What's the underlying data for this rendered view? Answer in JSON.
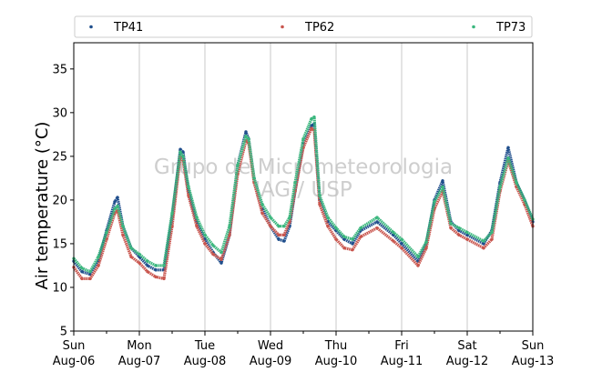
{
  "chart_data": {
    "type": "scatter",
    "title": "",
    "ylabel": "Air temperature (°C)",
    "ylim": [
      5,
      38
    ],
    "yticks": [
      5,
      10,
      15,
      20,
      25,
      30,
      35
    ],
    "xlim": [
      "2023-08-06T00:00",
      "2023-08-13T00:00"
    ],
    "xticks": [
      {
        "date": "2023-08-06T00:00",
        "day": "Sun",
        "date_label": "Aug-06"
      },
      {
        "date": "2023-08-07T00:00",
        "day": "Mon",
        "date_label": "Aug-07"
      },
      {
        "date": "2023-08-08T00:00",
        "day": "Tue",
        "date_label": "Aug-08"
      },
      {
        "date": "2023-08-09T00:00",
        "day": "Wed",
        "date_label": "Aug-09"
      },
      {
        "date": "2023-08-10T00:00",
        "day": "Thu",
        "date_label": "Aug-10"
      },
      {
        "date": "2023-08-11T00:00",
        "day": "Fri",
        "date_label": "Aug-11"
      },
      {
        "date": "2023-08-12T00:00",
        "day": "Sat",
        "date_label": "Aug-12"
      },
      {
        "date": "2023-08-13T00:00",
        "day": "Sun",
        "date_label": "Aug-13"
      }
    ],
    "grid": "vertical",
    "legend": {
      "placement": "top",
      "columns": 3
    },
    "watermark": [
      "Grupo de Micrometeorologia",
      "IAG / USP"
    ],
    "series": [
      {
        "name": "TP41",
        "color": "#1f4e8c",
        "points": [
          [
            "2023-08-06T00:00",
            13.0
          ],
          [
            "2023-08-06T03:00",
            11.8
          ],
          [
            "2023-08-06T06:00",
            11.5
          ],
          [
            "2023-08-06T09:00",
            13.0
          ],
          [
            "2023-08-06T12:00",
            16.5
          ],
          [
            "2023-08-06T15:00",
            19.8
          ],
          [
            "2023-08-06T16:00",
            20.3
          ],
          [
            "2023-08-06T18:00",
            17.0
          ],
          [
            "2023-08-06T21:00",
            14.5
          ],
          [
            "2023-08-07T00:00",
            13.5
          ],
          [
            "2023-08-07T03:00",
            12.5
          ],
          [
            "2023-08-07T06:00",
            12.0
          ],
          [
            "2023-08-07T09:00",
            12.0
          ],
          [
            "2023-08-07T12:00",
            18.0
          ],
          [
            "2023-08-07T15:00",
            25.8
          ],
          [
            "2023-08-07T16:00",
            25.5
          ],
          [
            "2023-08-07T18:00",
            21.0
          ],
          [
            "2023-08-07T21:00",
            17.5
          ],
          [
            "2023-08-08T00:00",
            15.5
          ],
          [
            "2023-08-08T03:00",
            14.0
          ],
          [
            "2023-08-08T06:00",
            12.8
          ],
          [
            "2023-08-08T09:00",
            16.0
          ],
          [
            "2023-08-08T12:00",
            24.0
          ],
          [
            "2023-08-08T15:00",
            27.8
          ],
          [
            "2023-08-08T16:00",
            27.0
          ],
          [
            "2023-08-08T18:00",
            22.5
          ],
          [
            "2023-08-08T21:00",
            19.0
          ],
          [
            "2023-08-09T00:00",
            17.0
          ],
          [
            "2023-08-09T03:00",
            15.5
          ],
          [
            "2023-08-09T05:00",
            15.3
          ],
          [
            "2023-08-09T07:00",
            17.0
          ],
          [
            "2023-08-09T09:00",
            21.0
          ],
          [
            "2023-08-09T12:00",
            26.5
          ],
          [
            "2023-08-09T15:00",
            28.5
          ],
          [
            "2023-08-09T16:00",
            28.7
          ],
          [
            "2023-08-09T18:00",
            20.0
          ],
          [
            "2023-08-09T21:00",
            17.5
          ],
          [
            "2023-08-10T00:00",
            16.5
          ],
          [
            "2023-08-10T03:00",
            15.5
          ],
          [
            "2023-08-10T06:00",
            15.0
          ],
          [
            "2023-08-10T09:00",
            16.5
          ],
          [
            "2023-08-10T15:00",
            17.5
          ],
          [
            "2023-08-10T21:00",
            16.0
          ],
          [
            "2023-08-11T00:00",
            15.0
          ],
          [
            "2023-08-11T06:00",
            13.0
          ],
          [
            "2023-08-11T09:00",
            15.0
          ],
          [
            "2023-08-11T12:00",
            20.0
          ],
          [
            "2023-08-11T15:00",
            22.2
          ],
          [
            "2023-08-11T18:00",
            17.5
          ],
          [
            "2023-08-11T21:00",
            16.5
          ],
          [
            "2023-08-12T00:00",
            16.0
          ],
          [
            "2023-08-12T06:00",
            15.0
          ],
          [
            "2023-08-12T09:00",
            16.5
          ],
          [
            "2023-08-12T12:00",
            22.0
          ],
          [
            "2023-08-12T15:00",
            26.0
          ],
          [
            "2023-08-12T18:00",
            22.0
          ],
          [
            "2023-08-12T21:00",
            20.0
          ],
          [
            "2023-08-13T00:00",
            17.5
          ]
        ]
      },
      {
        "name": "TP62",
        "color": "#c9564e",
        "points": [
          [
            "2023-08-06T00:00",
            12.3
          ],
          [
            "2023-08-06T03:00",
            11.0
          ],
          [
            "2023-08-06T06:00",
            11.0
          ],
          [
            "2023-08-06T09:00",
            12.5
          ],
          [
            "2023-08-06T12:00",
            15.5
          ],
          [
            "2023-08-06T15:00",
            18.5
          ],
          [
            "2023-08-06T16:00",
            18.8
          ],
          [
            "2023-08-06T18:00",
            16.0
          ],
          [
            "2023-08-06T21:00",
            13.5
          ],
          [
            "2023-08-07T00:00",
            12.8
          ],
          [
            "2023-08-07T03:00",
            11.8
          ],
          [
            "2023-08-07T06:00",
            11.2
          ],
          [
            "2023-08-07T09:00",
            11.0
          ],
          [
            "2023-08-07T12:00",
            17.0
          ],
          [
            "2023-08-07T15:00",
            25.0
          ],
          [
            "2023-08-07T16:00",
            24.5
          ],
          [
            "2023-08-07T18:00",
            20.5
          ],
          [
            "2023-08-07T21:00",
            17.0
          ],
          [
            "2023-08-08T00:00",
            15.0
          ],
          [
            "2023-08-08T03:00",
            13.8
          ],
          [
            "2023-08-08T06:00",
            13.2
          ],
          [
            "2023-08-08T09:00",
            16.0
          ],
          [
            "2023-08-08T12:00",
            23.0
          ],
          [
            "2023-08-08T15:00",
            26.8
          ],
          [
            "2023-08-08T16:00",
            26.5
          ],
          [
            "2023-08-08T18:00",
            22.0
          ],
          [
            "2023-08-08T21:00",
            18.5
          ],
          [
            "2023-08-09T00:00",
            17.0
          ],
          [
            "2023-08-09T03:00",
            16.0
          ],
          [
            "2023-08-09T05:00",
            16.0
          ],
          [
            "2023-08-09T07:00",
            17.5
          ],
          [
            "2023-08-09T09:00",
            21.0
          ],
          [
            "2023-08-09T12:00",
            26.0
          ],
          [
            "2023-08-09T15:00",
            28.2
          ],
          [
            "2023-08-09T16:00",
            28.0
          ],
          [
            "2023-08-09T18:00",
            19.5
          ],
          [
            "2023-08-09T21:00",
            17.0
          ],
          [
            "2023-08-10T00:00",
            15.5
          ],
          [
            "2023-08-10T03:00",
            14.5
          ],
          [
            "2023-08-10T06:00",
            14.3
          ],
          [
            "2023-08-10T09:00",
            15.8
          ],
          [
            "2023-08-10T15:00",
            16.8
          ],
          [
            "2023-08-10T21:00",
            15.3
          ],
          [
            "2023-08-11T00:00",
            14.5
          ],
          [
            "2023-08-11T06:00",
            12.5
          ],
          [
            "2023-08-11T09:00",
            14.5
          ],
          [
            "2023-08-11T12:00",
            19.0
          ],
          [
            "2023-08-11T15:00",
            21.0
          ],
          [
            "2023-08-11T18:00",
            16.8
          ],
          [
            "2023-08-11T21:00",
            16.0
          ],
          [
            "2023-08-12T00:00",
            15.5
          ],
          [
            "2023-08-12T06:00",
            14.5
          ],
          [
            "2023-08-12T09:00",
            15.5
          ],
          [
            "2023-08-12T12:00",
            21.0
          ],
          [
            "2023-08-12T15:00",
            24.5
          ],
          [
            "2023-08-12T18:00",
            21.5
          ],
          [
            "2023-08-12T21:00",
            19.5
          ],
          [
            "2023-08-13T00:00",
            17.0
          ]
        ]
      },
      {
        "name": "TP73",
        "color": "#3bb77e",
        "points": [
          [
            "2023-08-06T00:00",
            13.3
          ],
          [
            "2023-08-06T03:00",
            12.2
          ],
          [
            "2023-08-06T06:00",
            11.8
          ],
          [
            "2023-08-06T09:00",
            13.5
          ],
          [
            "2023-08-06T12:00",
            16.3
          ],
          [
            "2023-08-06T15:00",
            19.0
          ],
          [
            "2023-08-06T16:00",
            19.3
          ],
          [
            "2023-08-06T18:00",
            17.0
          ],
          [
            "2023-08-06T21:00",
            14.5
          ],
          [
            "2023-08-07T00:00",
            13.8
          ],
          [
            "2023-08-07T03:00",
            13.0
          ],
          [
            "2023-08-07T06:00",
            12.5
          ],
          [
            "2023-08-07T09:00",
            12.5
          ],
          [
            "2023-08-07T12:00",
            18.5
          ],
          [
            "2023-08-07T15:00",
            25.5
          ],
          [
            "2023-08-07T16:00",
            25.0
          ],
          [
            "2023-08-07T18:00",
            21.5
          ],
          [
            "2023-08-07T21:00",
            18.0
          ],
          [
            "2023-08-08T00:00",
            16.0
          ],
          [
            "2023-08-08T03:00",
            14.8
          ],
          [
            "2023-08-08T06:00",
            14.0
          ],
          [
            "2023-08-08T09:00",
            17.0
          ],
          [
            "2023-08-08T12:00",
            24.0
          ],
          [
            "2023-08-08T15:00",
            27.3
          ],
          [
            "2023-08-08T16:00",
            27.0
          ],
          [
            "2023-08-08T18:00",
            22.5
          ],
          [
            "2023-08-08T21:00",
            19.5
          ],
          [
            "2023-08-09T00:00",
            18.0
          ],
          [
            "2023-08-09T03:00",
            17.0
          ],
          [
            "2023-08-09T05:00",
            17.0
          ],
          [
            "2023-08-09T07:00",
            18.0
          ],
          [
            "2023-08-09T09:00",
            22.0
          ],
          [
            "2023-08-09T12:00",
            27.0
          ],
          [
            "2023-08-09T15:00",
            29.3
          ],
          [
            "2023-08-09T16:00",
            29.5
          ],
          [
            "2023-08-09T18:00",
            20.5
          ],
          [
            "2023-08-09T21:00",
            18.0
          ],
          [
            "2023-08-10T00:00",
            16.8
          ],
          [
            "2023-08-10T03:00",
            15.8
          ],
          [
            "2023-08-10T06:00",
            15.5
          ],
          [
            "2023-08-10T09:00",
            16.8
          ],
          [
            "2023-08-10T15:00",
            18.0
          ],
          [
            "2023-08-10T21:00",
            16.3
          ],
          [
            "2023-08-11T00:00",
            15.5
          ],
          [
            "2023-08-11T06:00",
            13.5
          ],
          [
            "2023-08-11T09:00",
            15.2
          ],
          [
            "2023-08-11T12:00",
            19.8
          ],
          [
            "2023-08-11T15:00",
            21.5
          ],
          [
            "2023-08-11T18:00",
            17.3
          ],
          [
            "2023-08-11T21:00",
            16.8
          ],
          [
            "2023-08-12T00:00",
            16.3
          ],
          [
            "2023-08-12T06:00",
            15.3
          ],
          [
            "2023-08-12T09:00",
            16.3
          ],
          [
            "2023-08-12T12:00",
            21.5
          ],
          [
            "2023-08-12T15:00",
            24.8
          ],
          [
            "2023-08-12T18:00",
            22.0
          ],
          [
            "2023-08-12T21:00",
            20.0
          ],
          [
            "2023-08-13T00:00",
            17.8
          ]
        ]
      }
    ]
  }
}
